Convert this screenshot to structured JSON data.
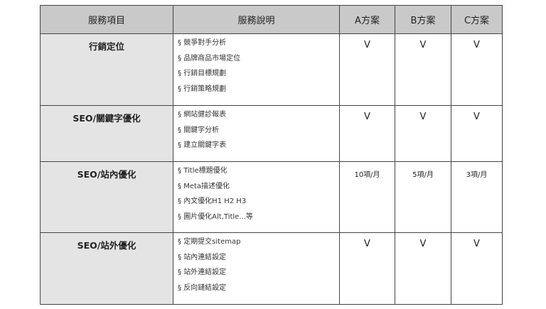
{
  "headers": [
    "服務項目",
    "服務說明",
    "A方案",
    "B方案",
    "C方案"
  ],
  "bullet": "§",
  "rows": [
    {
      "item": "行銷定位",
      "desc": [
        "競爭對手分析",
        "品牌商品市場定位",
        "行銷目標規劃",
        "行銷策略規劃"
      ],
      "a": "V",
      "b": "V",
      "c": "V"
    },
    {
      "item": "SEO/關鍵字優化",
      "desc": [
        "網站健診報表",
        "關鍵字分析",
        "建立關鍵字表"
      ],
      "a": "V",
      "b": "V",
      "c": "V"
    },
    {
      "item": "SEO/站內優化",
      "desc": [
        "Title標題優化",
        "Meta描述優化",
        "內文優化H1 H2 H3",
        "圖片優化Alt,Title...等"
      ],
      "a": "10項/月",
      "b": "5項/月",
      "c": "3項/月"
    },
    {
      "item": "SEO/站外優化",
      "desc": [
        "定期提交sitemap",
        "站內連結設定",
        "站外連結設定",
        "反向鏈結設定"
      ],
      "a": "V",
      "b": "V",
      "c": "V"
    }
  ]
}
